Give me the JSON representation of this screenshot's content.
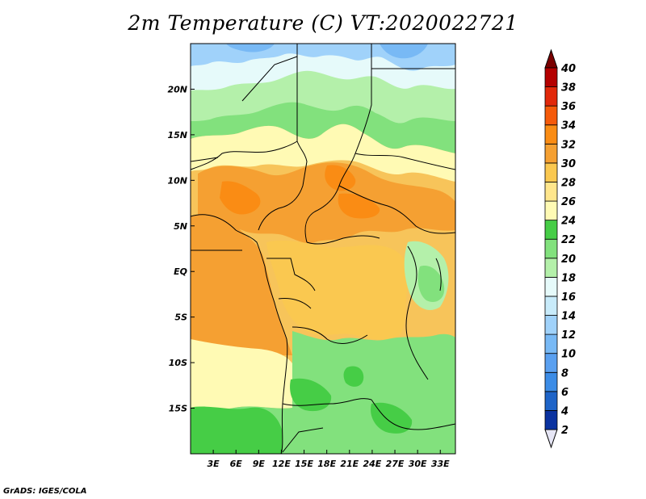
{
  "title": "2m Temperature (C) VT:2020022721",
  "credit": "GrADS: IGES/COLA",
  "lon_axis": {
    "labels": [
      "3E",
      "6E",
      "9E",
      "12E",
      "15E",
      "18E",
      "21E",
      "24E",
      "27E",
      "30E",
      "33E"
    ],
    "values": [
      3,
      6,
      9,
      12,
      15,
      18,
      21,
      24,
      27,
      30,
      33
    ],
    "range": [
      0,
      35
    ]
  },
  "lat_axis": {
    "labels": [
      "20N",
      "15N",
      "10N",
      "5N",
      "EQ",
      "5S",
      "10S",
      "15S"
    ],
    "values": [
      20,
      15,
      10,
      5,
      0,
      -5,
      -10,
      -15
    ],
    "range": [
      -20,
      25
    ]
  },
  "colorbar": {
    "levels": [
      2,
      4,
      6,
      8,
      10,
      12,
      14,
      16,
      18,
      20,
      22,
      24,
      26,
      28,
      30,
      32,
      34,
      36,
      38,
      40
    ],
    "colors": [
      "#140a78",
      "#0a32a0",
      "#1e64c8",
      "#3c8ce6",
      "#5aa0f0",
      "#78b9f5",
      "#a0d2fa",
      "#c8ebfa",
      "#e6fafa",
      "#b4f0aa",
      "#82e17d",
      "#46cd46",
      "#fffab4",
      "#ffe68c",
      "#fac850",
      "#f5a032",
      "#fa8c14",
      "#f55a0a",
      "#e1280a",
      "#b40000",
      "#7a0000"
    ],
    "below_color": "#e6e6f5"
  }
}
